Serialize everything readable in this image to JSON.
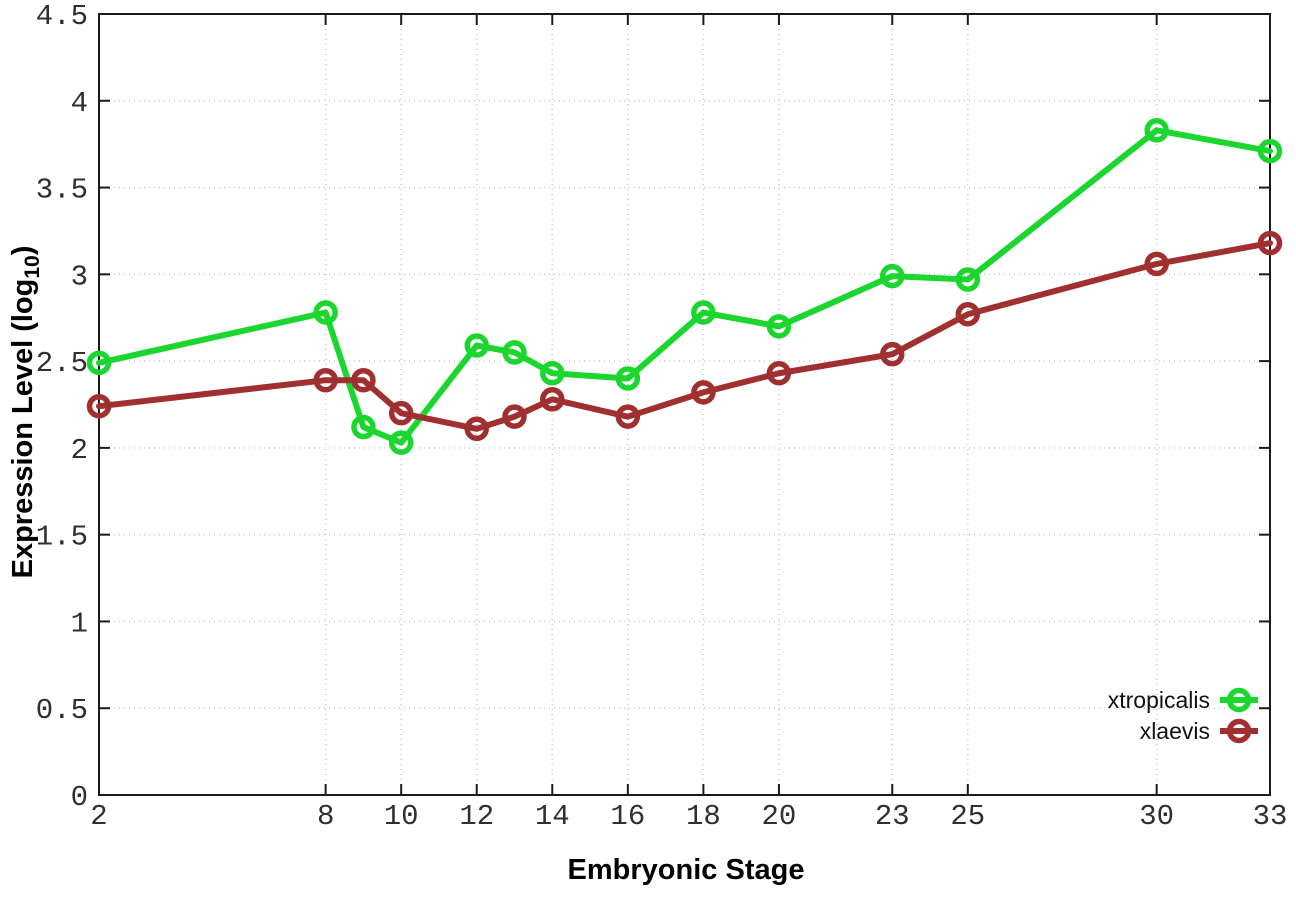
{
  "figure": {
    "background": "#ffffff",
    "border_color": "#1a1a1a",
    "grid_color": "#c4c4c4",
    "tick_label_color": "#2f2f2f"
  },
  "chart_data": {
    "type": "line",
    "title": "",
    "xlabel": "Embryonic Stage",
    "ylabel_main": "Expression Level (log",
    "ylabel_sub": "10",
    "ylabel_close": ")",
    "xlim": [
      2,
      33
    ],
    "ylim": [
      0,
      4.5
    ],
    "grid": true,
    "legend_position": "bottom-right",
    "xticks": [
      2,
      8,
      10,
      12,
      14,
      16,
      18,
      20,
      23,
      25,
      30,
      33
    ],
    "yticks": [
      0,
      0.5,
      1,
      1.5,
      2,
      2.5,
      3,
      3.5,
      4,
      4.5
    ],
    "x": [
      2,
      8,
      9,
      10,
      12,
      13,
      14,
      16,
      18,
      20,
      23,
      25,
      30,
      33
    ],
    "series": [
      {
        "name": "xtropicalis",
        "color": "#1bd62e",
        "marker": "open-circle",
        "values": [
          2.49,
          2.78,
          2.12,
          2.03,
          2.59,
          2.55,
          2.43,
          2.4,
          2.78,
          2.7,
          2.99,
          2.97,
          3.83,
          3.71
        ]
      },
      {
        "name": "xlaevis",
        "color": "#a03030",
        "marker": "open-circle",
        "values": [
          2.24,
          2.39,
          2.39,
          2.2,
          2.11,
          2.18,
          2.28,
          2.18,
          2.32,
          2.43,
          2.54,
          2.77,
          3.06,
          3.18
        ]
      }
    ]
  }
}
